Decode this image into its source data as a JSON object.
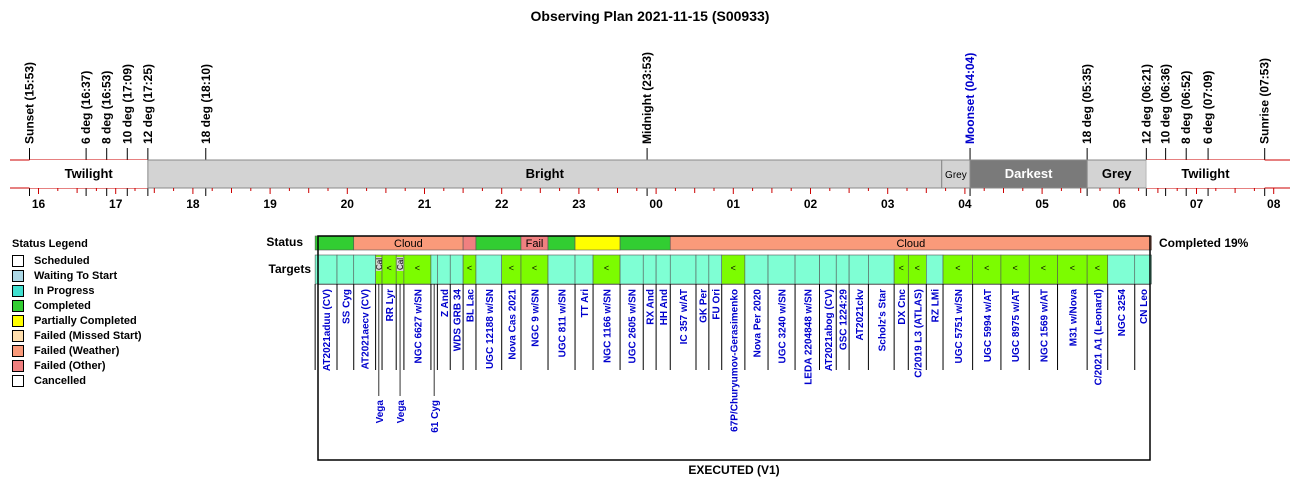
{
  "title": "Observing Plan 2021-11-15 (S00933)",
  "footer": "EXECUTED (V1)",
  "completed_text": "Completed 19%",
  "row_labels": {
    "status": "Status",
    "targets": "Targets"
  },
  "colors": {
    "scheduled": "#ffffff",
    "waiting": "#add8e6",
    "in_progress": "#40e0d0",
    "completed": "#32cd32",
    "partial": "#ffff00",
    "missed": "#ffdead",
    "weather": "#fa9a7a",
    "other": "#f08080",
    "cancelled": "#ffffff",
    "twilight": "#ffffff",
    "bright": "#d3d3d3",
    "grey": "#d3d3d3",
    "darkest": "#7a7a7a",
    "target_cell": "#7fffd4",
    "calib_cell": "#7cfc00",
    "target_text": "#0000cd",
    "axis_red": "#cc0000"
  },
  "legend": {
    "title": "Status Legend",
    "items": [
      {
        "label": "Scheduled",
        "color": "#ffffff"
      },
      {
        "label": "Waiting To Start",
        "color": "#add8e6"
      },
      {
        "label": "In Progress",
        "color": "#40e0d0"
      },
      {
        "label": "Completed",
        "color": "#32cd32"
      },
      {
        "label": "Partially Completed",
        "color": "#ffff00"
      },
      {
        "label": "Failed (Missed Start)",
        "color": "#ffdead"
      },
      {
        "label": "Failed (Weather)",
        "color": "#fa9a7a"
      },
      {
        "label": "Failed (Other)",
        "color": "#f08080"
      },
      {
        "label": "Cancelled",
        "color": "#ffffff"
      }
    ]
  },
  "chart_data": {
    "type": "timeline",
    "x_range_hours": [
      15.6,
      32.05
    ],
    "hour_ticks": [
      "16",
      "17",
      "18",
      "19",
      "20",
      "21",
      "22",
      "23",
      "00",
      "01",
      "02",
      "03",
      "04",
      "05",
      "06",
      "07",
      "08"
    ],
    "events": [
      {
        "label": "Sunset (15:53)",
        "t": "15:53",
        "color": "#000000"
      },
      {
        "label": "6 deg (16:37)",
        "t": "16:37",
        "color": "#000000"
      },
      {
        "label": "8 deg (16:53)",
        "t": "16:53",
        "color": "#000000"
      },
      {
        "label": "10 deg (17:09)",
        "t": "17:09",
        "color": "#000000"
      },
      {
        "label": "12 deg (17:25)",
        "t": "17:25",
        "color": "#000000"
      },
      {
        "label": "18 deg (18:10)",
        "t": "18:10",
        "color": "#000000"
      },
      {
        "label": "Midnight (23:53)",
        "t": "23:53",
        "color": "#000000"
      },
      {
        "label": "Moonset (04:04)",
        "t": "04:04",
        "color": "#0000cd"
      },
      {
        "label": "18 deg (05:35)",
        "t": "05:35",
        "color": "#000000"
      },
      {
        "label": "12 deg (06:21)",
        "t": "06:21",
        "color": "#000000"
      },
      {
        "label": "10 deg (06:36)",
        "t": "06:36",
        "color": "#000000"
      },
      {
        "label": "8 deg (06:52)",
        "t": "06:52",
        "color": "#000000"
      },
      {
        "label": "6 deg (07:09)",
        "t": "07:09",
        "color": "#000000"
      },
      {
        "label": "Sunrise (07:53)",
        "t": "07:53",
        "color": "#000000"
      }
    ],
    "sky_periods": [
      {
        "label": "Twilight",
        "start": "15:53",
        "end": "17:25",
        "kind": "twilight"
      },
      {
        "label": "Bright",
        "start": "17:25",
        "end": "03:42",
        "kind": "bright"
      },
      {
        "label": "Grey",
        "start": "03:42",
        "end": "04:04",
        "kind": "grey"
      },
      {
        "label": "Darkest",
        "start": "04:04",
        "end": "05:35",
        "kind": "darkest"
      },
      {
        "label": "Grey",
        "start": "05:35",
        "end": "06:21",
        "kind": "grey"
      },
      {
        "label": "Twilight",
        "start": "06:21",
        "end": "07:53",
        "kind": "twilight"
      }
    ],
    "status_segments": [
      {
        "start": "19:35",
        "end": "20:05",
        "status": "completed",
        "label": ""
      },
      {
        "start": "20:05",
        "end": "21:30",
        "status": "weather",
        "label": "Cloud"
      },
      {
        "start": "21:30",
        "end": "21:40",
        "status": "other",
        "label": ""
      },
      {
        "start": "21:40",
        "end": "22:15",
        "status": "completed",
        "label": ""
      },
      {
        "start": "22:15",
        "end": "22:36",
        "status": "other",
        "label": "Fail"
      },
      {
        "start": "22:36",
        "end": "22:57",
        "status": "completed",
        "label": ""
      },
      {
        "start": "22:57",
        "end": "23:32",
        "status": "partial",
        "label": ""
      },
      {
        "start": "23:32",
        "end": "00:11",
        "status": "completed",
        "label": ""
      },
      {
        "start": "00:11",
        "end": "06:25",
        "status": "weather",
        "label": "Cloud"
      }
    ],
    "targets": [
      {
        "name": "AT2021aduu (CV)",
        "start": "19:35",
        "end": "19:52",
        "kind": "target"
      },
      {
        "name": "SS Cyg",
        "start": "19:52",
        "end": "20:05",
        "kind": "target"
      },
      {
        "name": "AT2021aecv (CV)",
        "start": "20:05",
        "end": "20:22",
        "kind": "target"
      },
      {
        "name": "",
        "start": "20:22",
        "end": "20:27",
        "kind": "calib",
        "mark": "Cal",
        "below": "Vega"
      },
      {
        "name": "RR Lyr",
        "start": "20:27",
        "end": "20:38",
        "kind": "calib",
        "mark": "<"
      },
      {
        "name": "",
        "start": "20:38",
        "end": "20:44",
        "kind": "calib",
        "mark": "Cal",
        "below": "Vega"
      },
      {
        "name": "NGC 6627 w/SN",
        "start": "20:44",
        "end": "21:05",
        "kind": "calib",
        "mark": "<"
      },
      {
        "name": "",
        "start": "21:05",
        "end": "21:10",
        "kind": "target",
        "below": "61 Cyg"
      },
      {
        "name": "Z And",
        "start": "21:10",
        "end": "21:20",
        "kind": "target"
      },
      {
        "name": "WDS GRB 34",
        "start": "21:20",
        "end": "21:30",
        "kind": "target"
      },
      {
        "name": "BL Lac",
        "start": "21:30",
        "end": "21:40",
        "kind": "calib",
        "mark": "<"
      },
      {
        "name": "UGC 12188 w/SN",
        "start": "21:40",
        "end": "22:00",
        "kind": "target"
      },
      {
        "name": "Nova Cas 2021",
        "start": "22:00",
        "end": "22:15",
        "kind": "calib",
        "mark": "<"
      },
      {
        "name": "NGC 9 w/SN",
        "start": "22:15",
        "end": "22:36",
        "kind": "calib",
        "mark": "<"
      },
      {
        "name": "UGC 811 w/SN",
        "start": "22:36",
        "end": "22:57",
        "kind": "target"
      },
      {
        "name": "TT Ari",
        "start": "22:57",
        "end": "23:11",
        "kind": "target"
      },
      {
        "name": "NGC 1166 w/SN",
        "start": "23:11",
        "end": "23:32",
        "kind": "calib",
        "mark": "<"
      },
      {
        "name": "UGC 2605 w/SN",
        "start": "23:32",
        "end": "23:50",
        "kind": "target"
      },
      {
        "name": "RX And",
        "start": "23:50",
        "end": "24:00",
        "kind": "target"
      },
      {
        "name": "HH And",
        "start": "24:00",
        "end": "00:11",
        "kind": "target"
      },
      {
        "name": "IC 357 w/AT",
        "start": "00:11",
        "end": "00:31",
        "kind": "target"
      },
      {
        "name": "GK Per",
        "start": "00:31",
        "end": "00:41",
        "kind": "target"
      },
      {
        "name": "FU Ori",
        "start": "00:41",
        "end": "00:51",
        "kind": "target"
      },
      {
        "name": "67P/Churyumov-Gerasimenko",
        "start": "00:51",
        "end": "01:09",
        "kind": "calib",
        "mark": "<"
      },
      {
        "name": "Nova Per 2020",
        "start": "01:09",
        "end": "01:27",
        "kind": "target"
      },
      {
        "name": "UGC 3240 w/SN",
        "start": "01:27",
        "end": "01:48",
        "kind": "target"
      },
      {
        "name": "LEDA 2204848 w/SN",
        "start": "01:48",
        "end": "02:07",
        "kind": "target"
      },
      {
        "name": "AT2021abog (CV)",
        "start": "02:07",
        "end": "02:20",
        "kind": "target"
      },
      {
        "name": "GSC 1224:29",
        "start": "02:20",
        "end": "02:30",
        "kind": "target"
      },
      {
        "name": "AT2021ckv",
        "start": "02:30",
        "end": "02:45",
        "kind": "target"
      },
      {
        "name": "Scholz's Star",
        "start": "02:45",
        "end": "03:05",
        "kind": "target"
      },
      {
        "name": "DX Cnc",
        "start": "03:05",
        "end": "03:16",
        "kind": "calib",
        "mark": "<"
      },
      {
        "name": "C/2019 L3 (ATLAS)",
        "start": "03:16",
        "end": "03:30",
        "kind": "calib",
        "mark": "<"
      },
      {
        "name": "RZ LMi",
        "start": "03:30",
        "end": "03:43",
        "kind": "target"
      },
      {
        "name": "UGC 5751 w/SN",
        "start": "03:43",
        "end": "04:06",
        "kind": "calib",
        "mark": "<"
      },
      {
        "name": "UGC 5994 w/AT",
        "start": "04:06",
        "end": "04:28",
        "kind": "calib",
        "mark": "<"
      },
      {
        "name": "UGC 8975 w/AT",
        "start": "04:28",
        "end": "04:50",
        "kind": "calib",
        "mark": "<"
      },
      {
        "name": "NGC 1569 w/AT",
        "start": "04:50",
        "end": "05:12",
        "kind": "calib",
        "mark": "<"
      },
      {
        "name": "M31 w/Nova",
        "start": "05:12",
        "end": "05:35",
        "kind": "calib",
        "mark": "<"
      },
      {
        "name": "C/2021 A1 (Leonard)",
        "start": "05:35",
        "end": "05:51",
        "kind": "calib",
        "mark": "<"
      },
      {
        "name": "NGC 3254",
        "start": "05:51",
        "end": "06:12",
        "kind": "target"
      },
      {
        "name": "CN Leo",
        "start": "06:12",
        "end": "06:25",
        "kind": "target"
      }
    ]
  }
}
